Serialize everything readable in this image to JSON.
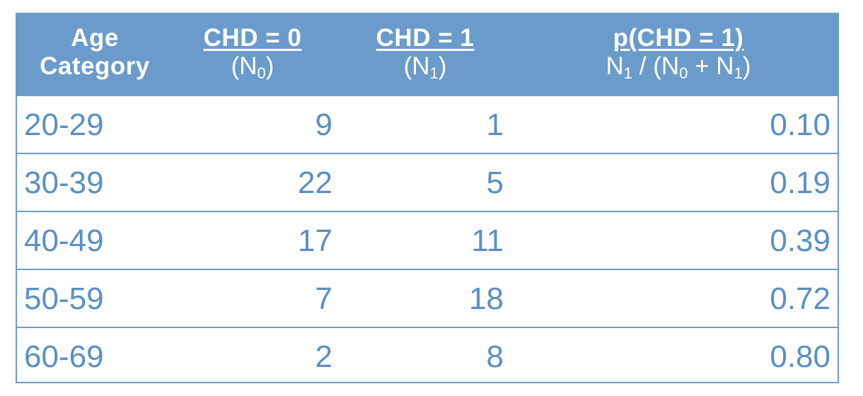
{
  "header": {
    "age_line1": "Age",
    "age_line2": "Category",
    "chd0_title": "CHD = 0",
    "chd0_n": "N",
    "chd0_sub": "0",
    "chd1_title": "CHD = 1",
    "chd1_n": "N",
    "chd1_sub": "1",
    "p_title": "p(CHD = 1)",
    "p_formula_parts": [
      "N",
      "1",
      "/ (N",
      "0",
      "+ N",
      "1",
      ")"
    ]
  },
  "rows": [
    {
      "age": "20-29",
      "n0": "9",
      "n1": "1",
      "p": "0.10"
    },
    {
      "age": "30-39",
      "n0": "22",
      "n1": "5",
      "p": "0.19"
    },
    {
      "age": "40-49",
      "n0": "17",
      "n1": "11",
      "p": "0.39"
    },
    {
      "age": "50-59",
      "n0": "7",
      "n1": "18",
      "p": "0.72"
    },
    {
      "age": "60-69",
      "n0": "2",
      "n1": "8",
      "p": "0.80"
    }
  ],
  "colors": {
    "header_bg": "#6a9bcb",
    "header_text": "#ffffff",
    "cell_text": "#5a8fc4",
    "border": "#6a9ccc"
  }
}
